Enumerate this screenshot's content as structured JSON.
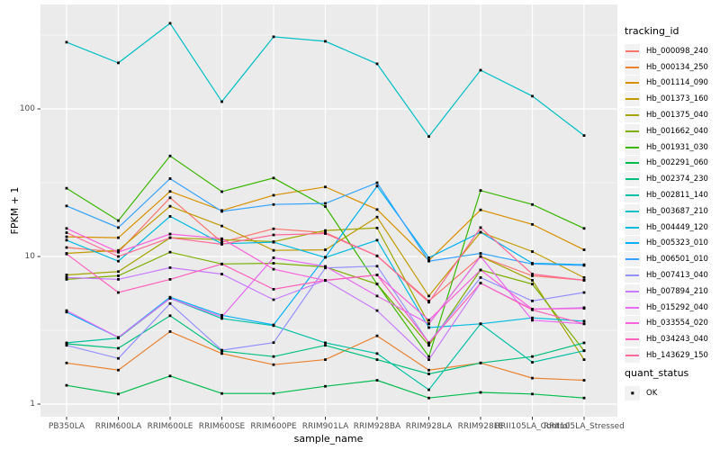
{
  "chart_data": {
    "type": "line",
    "title": "",
    "xlabel": "sample_name",
    "ylabel": "FPKM + 1",
    "y_scale": "log10",
    "y_ticks": [
      1,
      10,
      100
    ],
    "y_minor_ticks": [
      3.162,
      31.62,
      316.2
    ],
    "ylim": [
      0.82,
      510
    ],
    "grid": "on",
    "panel_background": "#ebebeb",
    "gridline_color": "#ffffff",
    "point_color": "#000000",
    "legend_position": "right",
    "legend_title": "tracking_id",
    "legend2_title": "quant_status",
    "legend2_items": [
      {
        "label": "OK",
        "marker": "black-square-point"
      }
    ],
    "categories": [
      "PB350LA",
      "RRIM600LA",
      "RRIM600LE",
      "RRIM600SE",
      "RRIM600PE",
      "RRIM901LA",
      "RRIM928BA",
      "RRIM928LA",
      "RRIM928LE",
      "RRII105LA_Control",
      "RRII105LA_Stressed"
    ],
    "series": [
      {
        "name": "Hb_000098_240",
        "color": "#F8766D",
        "values": [
          11.5,
          10.7,
          25.0,
          12.5,
          15.4,
          14.5,
          10.1,
          5.0,
          10.0,
          7.4,
          6.9
        ]
      },
      {
        "name": "Hb_000134_250",
        "color": "#EA8331",
        "values": [
          1.9,
          1.7,
          3.1,
          2.2,
          1.85,
          2.0,
          2.9,
          1.7,
          1.9,
          1.5,
          1.45
        ]
      },
      {
        "name": "Hb_001114_090",
        "color": "#D89000",
        "values": [
          13.6,
          13.4,
          27.6,
          20.5,
          26.0,
          29.6,
          20.8,
          9.4,
          20.7,
          16.5,
          11.1
        ]
      },
      {
        "name": "Hb_001373_160",
        "color": "#C09B00",
        "values": [
          10.5,
          11.0,
          21.9,
          16.1,
          11.0,
          11.1,
          18.5,
          5.4,
          14.6,
          10.8,
          7.2
        ]
      },
      {
        "name": "Hb_001375_040",
        "color": "#A3A500",
        "values": [
          7.5,
          7.9,
          13.4,
          13.0,
          12.6,
          15.0,
          15.6,
          3.5,
          10.0,
          6.9,
          2.0
        ]
      },
      {
        "name": "Hb_001662_040",
        "color": "#7CAE00",
        "values": [
          7.0,
          7.4,
          10.7,
          8.9,
          9.0,
          8.5,
          6.5,
          2.5,
          8.1,
          6.5,
          2.3
        ]
      },
      {
        "name": "Hb_001931_030",
        "color": "#39B600",
        "values": [
          29,
          17.5,
          48,
          27.5,
          34,
          21.8,
          6.5,
          2.1,
          28,
          22.5,
          15.5
        ]
      },
      {
        "name": "Hb_002291_060",
        "color": "#00BB4E",
        "values": [
          1.34,
          1.17,
          1.55,
          1.18,
          1.18,
          1.32,
          1.45,
          1.1,
          1.2,
          1.17,
          1.1
        ]
      },
      {
        "name": "Hb_002374_230",
        "color": "#00BF7D",
        "values": [
          2.56,
          2.39,
          3.97,
          2.29,
          2.1,
          2.5,
          2.0,
          1.6,
          1.9,
          2.1,
          2.6
        ]
      },
      {
        "name": "Hb_002811_140",
        "color": "#00C1A3",
        "values": [
          2.6,
          2.8,
          5.2,
          3.8,
          3.4,
          2.6,
          2.2,
          1.25,
          3.5,
          1.92,
          2.3
        ]
      },
      {
        "name": "Hb_003687_210",
        "color": "#00BFC4",
        "values": [
          283,
          205,
          380,
          112,
          308,
          287,
          202,
          65,
          183,
          122,
          66
        ]
      },
      {
        "name": "Hb_004449_120",
        "color": "#00BAE0",
        "values": [
          12.9,
          9.3,
          18.7,
          12.2,
          12.5,
          9.85,
          12.9,
          3.3,
          3.5,
          3.84,
          3.65
        ]
      },
      {
        "name": "Hb_005323_010",
        "color": "#00B0F6",
        "values": [
          4.2,
          2.83,
          5.3,
          4.0,
          3.44,
          9.9,
          30.0,
          9.8,
          14.6,
          9.0,
          8.8
        ]
      },
      {
        "name": "Hb_006501_010",
        "color": "#35A2FF",
        "values": [
          22,
          15.7,
          33.7,
          20.2,
          22.5,
          22.9,
          31.6,
          9.3,
          10.5,
          8.9,
          8.7
        ]
      },
      {
        "name": "Hb_007413_040",
        "color": "#9590FF",
        "values": [
          2.5,
          2.04,
          4.8,
          2.32,
          2.61,
          8.37,
          8.6,
          2.6,
          7.2,
          5.0,
          5.7
        ]
      },
      {
        "name": "Hb_007894_210",
        "color": "#C77CFF",
        "values": [
          7.2,
          7.0,
          8.4,
          7.6,
          5.1,
          6.9,
          4.3,
          2.0,
          6.6,
          4.4,
          4.5
        ]
      },
      {
        "name": "Hb_015292_040",
        "color": "#E76BF3",
        "values": [
          4.3,
          2.83,
          5.2,
          3.9,
          9.8,
          8.57,
          5.4,
          3.5,
          10.0,
          3.7,
          3.5
        ]
      },
      {
        "name": "Hb_033554_020",
        "color": "#FA62DB",
        "values": [
          15.5,
          10.7,
          14.2,
          13.2,
          8.2,
          6.87,
          7.5,
          3.7,
          8.1,
          4.4,
          4.45
        ]
      },
      {
        "name": "Hb_034243_040",
        "color": "#FF62BC",
        "values": [
          10.4,
          5.7,
          7.0,
          8.9,
          6.0,
          6.9,
          7.5,
          2.6,
          6.6,
          4.35,
          3.5
        ]
      },
      {
        "name": "Hb_143629_150",
        "color": "#FF6A98",
        "values": [
          14.5,
          10.0,
          13.4,
          12.1,
          14.0,
          14.3,
          10.1,
          4.9,
          15.7,
          7.6,
          6.9
        ]
      }
    ]
  }
}
